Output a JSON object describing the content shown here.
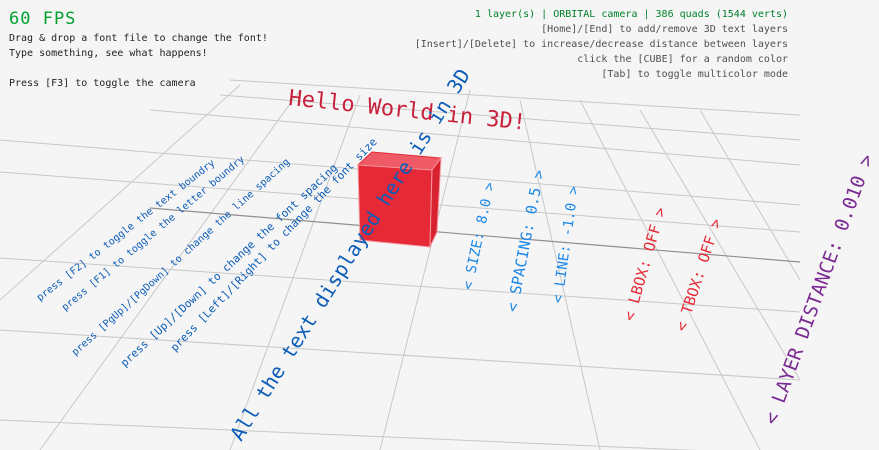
{
  "hud": {
    "fps": "60 FPS",
    "help1": "Drag & drop a font file to change the font!",
    "help2": "Type something, see what happens!",
    "help3": "Press [F3] to toggle the camera",
    "status": "1 layer(s) | ORBITAL camera |  386 quads (1544 verts)",
    "keys1": "[Home]/[End] to add/remove 3D text layers",
    "keys2": "[Insert]/[Delete] to increase/decrease distance between layers",
    "keys3": "click the [CUBE] for a random color",
    "keys4": "[Tab] to toggle multicolor mode",
    "status_color": "#00802b"
  },
  "scene": {
    "wave_text": "Hello World in 3D!",
    "cube_color": "#e62937",
    "instructions": [
      "All the text displayed here is in 3D",
      "press [Left]/[Right] to change the font size",
      "press [Up]/[Down] to change the font spacing",
      "press [PgUp]/[PgDown] to change the line spacing",
      "press [F1] to toggle the letter boundry",
      "press [F2] to toggle the text boundry"
    ],
    "options": [
      {
        "label": "< SIZE: 8.0 >",
        "color": "#1a87e8"
      },
      {
        "label": "< SPACING: 0.5 >",
        "color": "#1a87e8"
      },
      {
        "label": "< LINE: -1.0 >",
        "color": "#1a87e8"
      },
      {
        "label": "< LBOX: OFF >",
        "color": "#e62937"
      },
      {
        "label": "< TBOX: OFF >",
        "color": "#e62937"
      },
      {
        "label": "< LAYER DISTANCE: 0.010 >",
        "color": "#7a2a92"
      }
    ]
  }
}
